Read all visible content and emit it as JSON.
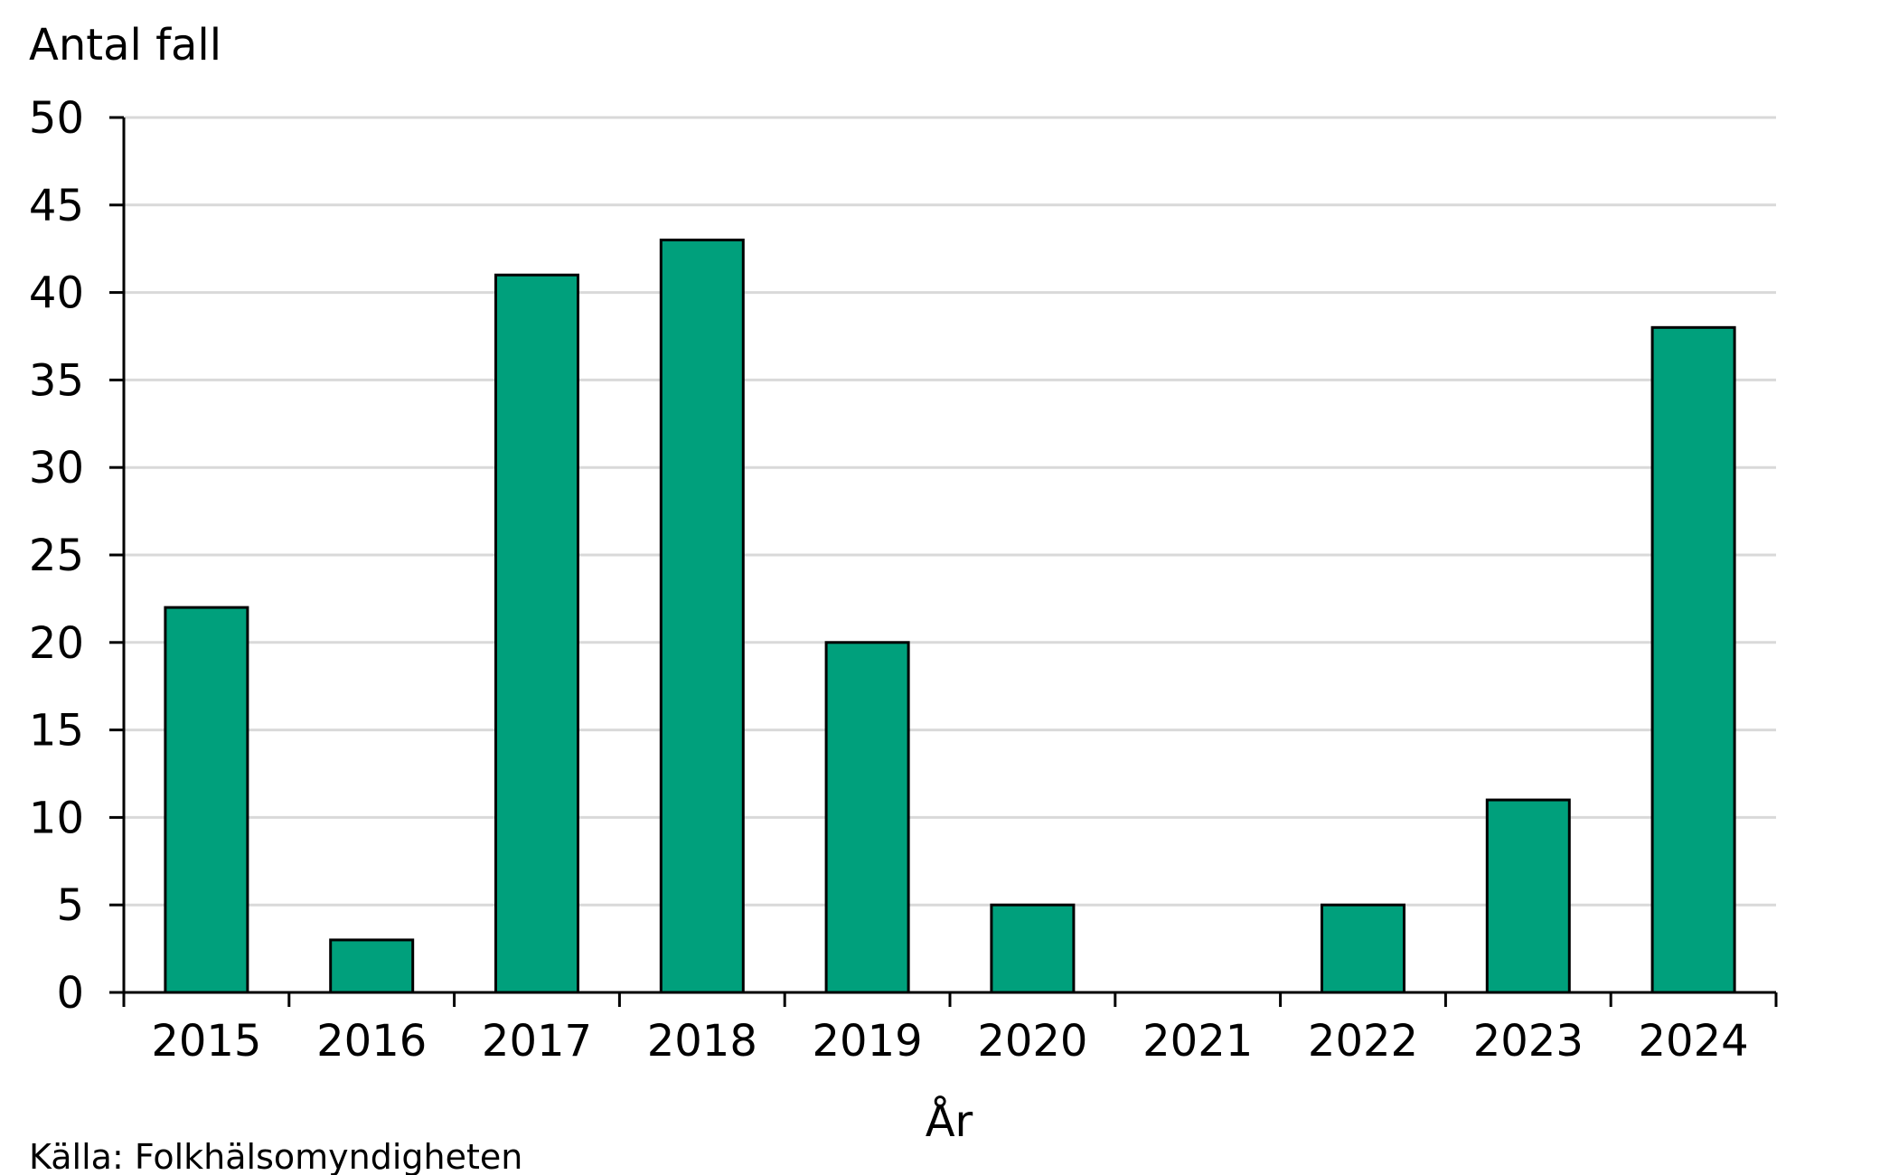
{
  "chart_data": {
    "type": "bar",
    "categories": [
      "2015",
      "2016",
      "2017",
      "2018",
      "2019",
      "2020",
      "2021",
      "2022",
      "2023",
      "2024"
    ],
    "values": [
      22,
      3,
      41,
      43,
      20,
      5,
      0,
      5,
      11,
      38
    ],
    "title": "",
    "xlabel": "År",
    "ylabel": "Antal fall",
    "ylim": [
      0,
      50
    ],
    "yticks": [
      0,
      5,
      10,
      15,
      20,
      25,
      30,
      35,
      40,
      45,
      50
    ],
    "grid": true,
    "legend": "none",
    "bar_color": "#00a07c"
  },
  "source": "Källa: Folkhälsomyndigheten"
}
